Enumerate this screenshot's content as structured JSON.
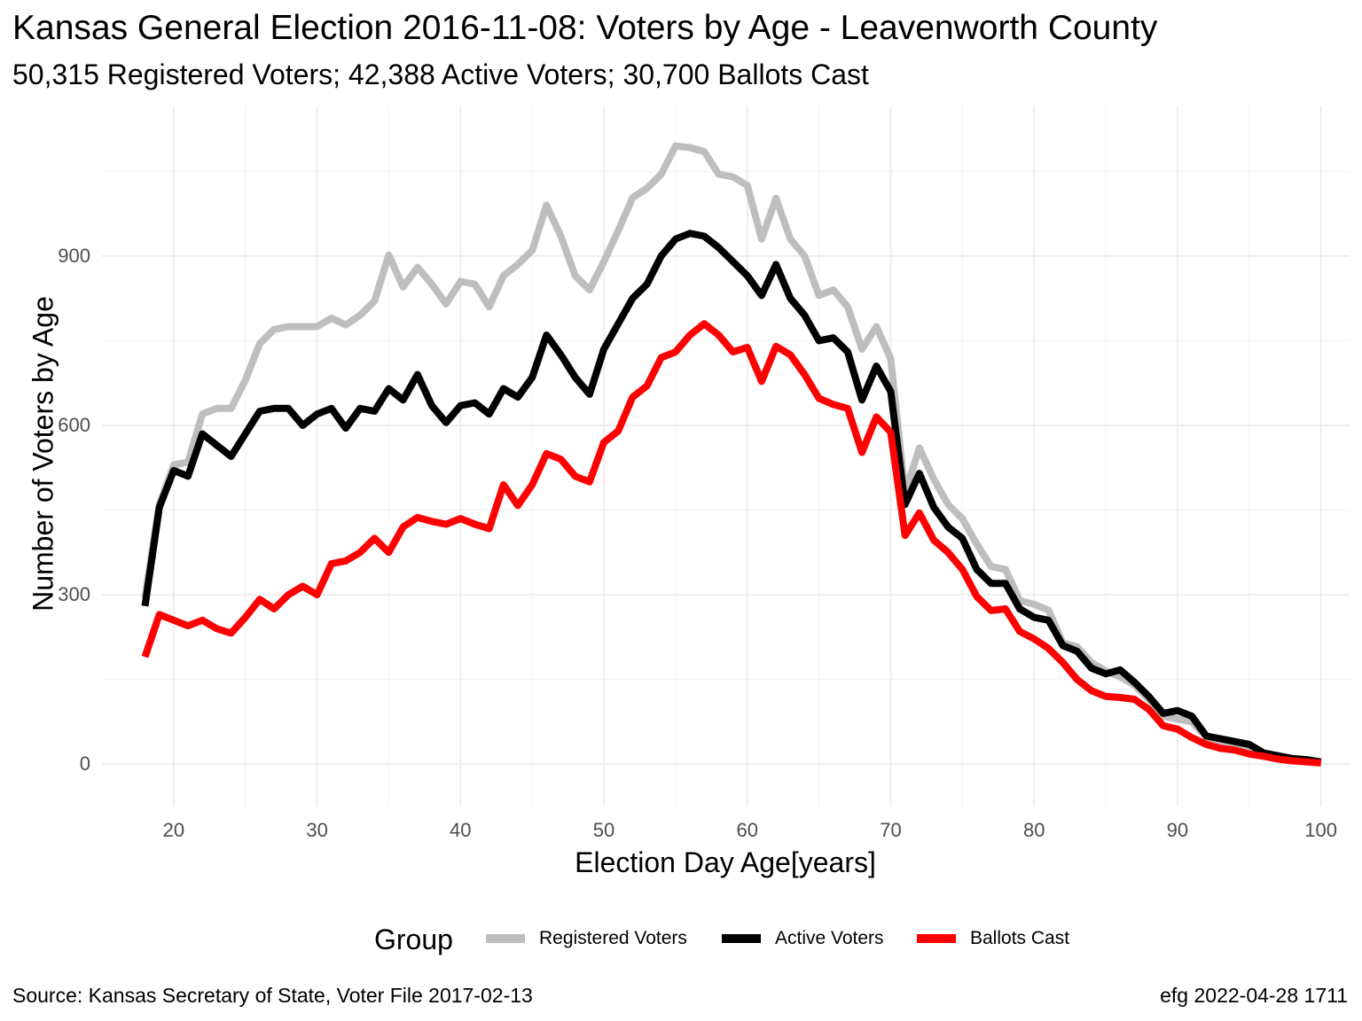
{
  "title": "Kansas General Election 2016-11-08:  Voters by Age - Leavenworth County",
  "subtitle": "50,315 Registered Voters; 42,388 Active Voters; 30,700 Ballots Cast",
  "caption_left": "Source:  Kansas Secretary of State, Voter File  2017-02-13",
  "caption_right": "efg 2022-04-28 1711",
  "legend": {
    "title": "Group",
    "items": [
      {
        "label": "Registered Voters",
        "color": "#bebebe"
      },
      {
        "label": "Active Voters",
        "color": "#000000"
      },
      {
        "label": "Ballots Cast",
        "color": "#ff0000"
      }
    ]
  },
  "chart_data": {
    "type": "line",
    "xlabel": "Election Day Age[years]",
    "ylabel": "Number of Voters by Age",
    "xlim": [
      15,
      102
    ],
    "ylim": [
      -75,
      1165
    ],
    "xticks": [
      20,
      30,
      40,
      50,
      60,
      70,
      80,
      90,
      100
    ],
    "yticks": [
      0,
      300,
      600,
      900
    ],
    "grid": true,
    "legend_position": "bottom",
    "x": [
      18,
      19,
      20,
      21,
      22,
      23,
      24,
      25,
      26,
      27,
      28,
      29,
      30,
      31,
      32,
      33,
      34,
      35,
      36,
      37,
      38,
      39,
      40,
      41,
      42,
      43,
      44,
      45,
      46,
      47,
      48,
      49,
      50,
      51,
      52,
      53,
      54,
      55,
      56,
      57,
      58,
      59,
      60,
      61,
      62,
      63,
      64,
      65,
      66,
      67,
      68,
      69,
      70,
      71,
      72,
      73,
      74,
      75,
      76,
      77,
      78,
      79,
      80,
      81,
      82,
      83,
      84,
      85,
      86,
      87,
      88,
      89,
      90,
      91,
      92,
      93,
      94,
      95,
      96,
      97,
      98,
      99,
      100
    ],
    "series": [
      {
        "name": "Registered Voters",
        "color": "#bebebe",
        "values": [
          295,
          460,
          530,
          535,
          620,
          630,
          630,
          680,
          745,
          770,
          775,
          775,
          775,
          790,
          778,
          795,
          820,
          902,
          845,
          880,
          850,
          815,
          855,
          850,
          810,
          865,
          885,
          910,
          990,
          935,
          865,
          840,
          890,
          945,
          1003,
          1020,
          1045,
          1095,
          1092,
          1085,
          1045,
          1040,
          1025,
          930,
          1002,
          930,
          900,
          830,
          840,
          810,
          735,
          775,
          718,
          480,
          560,
          505,
          460,
          435,
          390,
          350,
          345,
          290,
          283,
          273,
          215,
          208,
          180,
          165,
          155,
          140,
          115,
          85,
          80,
          75,
          48,
          40,
          35,
          27,
          20,
          15,
          8,
          5,
          3
        ]
      },
      {
        "name": "Active Voters",
        "color": "#000000",
        "values": [
          280,
          455,
          520,
          510,
          585,
          565,
          545,
          585,
          625,
          630,
          630,
          600,
          620,
          630,
          595,
          630,
          625,
          665,
          645,
          690,
          635,
          605,
          635,
          640,
          620,
          665,
          650,
          685,
          760,
          725,
          685,
          655,
          735,
          780,
          825,
          850,
          900,
          930,
          940,
          935,
          915,
          890,
          865,
          830,
          885,
          825,
          795,
          750,
          755,
          730,
          645,
          705,
          660,
          460,
          515,
          455,
          420,
          400,
          345,
          320,
          320,
          275,
          260,
          255,
          210,
          200,
          170,
          160,
          167,
          145,
          120,
          90,
          95,
          85,
          50,
          45,
          40,
          35,
          20,
          15,
          10,
          8,
          4
        ]
      },
      {
        "name": "Ballots Cast",
        "color": "#ff0000",
        "values": [
          190,
          265,
          255,
          245,
          255,
          240,
          232,
          260,
          292,
          275,
          300,
          315,
          300,
          355,
          360,
          375,
          400,
          375,
          420,
          437,
          430,
          425,
          435,
          425,
          417,
          495,
          458,
          495,
          550,
          540,
          510,
          500,
          570,
          590,
          650,
          670,
          720,
          730,
          760,
          780,
          760,
          730,
          738,
          678,
          740,
          725,
          690,
          648,
          637,
          630,
          552,
          615,
          588,
          405,
          445,
          397,
          375,
          345,
          297,
          272,
          275,
          235,
          222,
          205,
          180,
          150,
          130,
          120,
          118,
          115,
          97,
          68,
          62,
          47,
          35,
          28,
          25,
          18,
          14,
          9,
          6,
          4,
          2
        ]
      }
    ]
  }
}
